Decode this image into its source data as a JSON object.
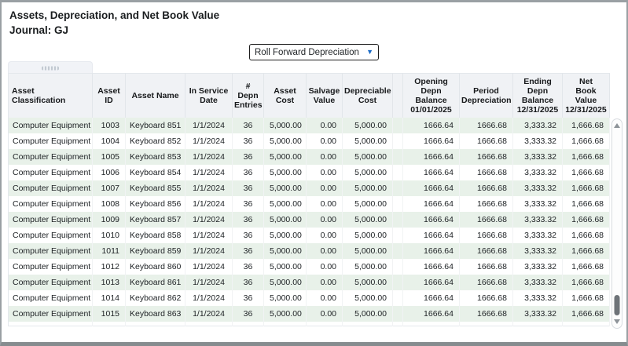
{
  "window": {
    "title": "Assets, Depreciation, and Net Book Value",
    "journal_label": "Journal: GJ"
  },
  "dropdown": {
    "value": "Roll Forward Depreciation",
    "caret_glyph": "▼",
    "caret_color": "#1a6ac6"
  },
  "colors": {
    "header_bg": "#f0f2f5",
    "row_alt_green": "#e8f1e9",
    "window_border": "#9aa0a4"
  },
  "table": {
    "columns": [
      {
        "key": "classification",
        "label": "Asset\nClassification",
        "align": "left",
        "width": 107
      },
      {
        "key": "asset_id",
        "label": "Asset ID",
        "align": "right",
        "width": 42
      },
      {
        "key": "asset_name",
        "label": "Asset Name",
        "align": "left",
        "width": 76
      },
      {
        "key": "in_service_date",
        "label": "In Service\nDate",
        "align": "center",
        "width": 60
      },
      {
        "key": "depn_entries",
        "label": "#\nDepn\nEntries",
        "align": "center",
        "width": 40
      },
      {
        "key": "asset_cost",
        "label": "Asset\nCost",
        "align": "right",
        "width": 54
      },
      {
        "key": "salvage_value",
        "label": "Salvage\nValue",
        "align": "right",
        "width": 46
      },
      {
        "key": "depreciable_cost",
        "label": "Depreciable\nCost",
        "align": "right",
        "width": 64
      },
      {
        "key": "spacer",
        "label": "",
        "align": "right",
        "width": 13
      },
      {
        "key": "opening_depn_balance",
        "label": "Opening\nDepn\nBalance\n01/01/2025",
        "align": "right",
        "width": 72
      },
      {
        "key": "period_depreciation",
        "label": "Period\nDepreciation",
        "align": "right",
        "width": 68
      },
      {
        "key": "ending_depn_balance",
        "label": "Ending\nDepn\nBalance\n12/31/2025",
        "align": "right",
        "width": 63
      },
      {
        "key": "net_book_value",
        "label": "Net\nBook Value\n12/31/2025",
        "align": "right",
        "width": 60
      }
    ],
    "rows": [
      {
        "classification": "Computer Equipment",
        "asset_id": "1003",
        "asset_name": "Keyboard 851",
        "in_service_date": "1/1/2024",
        "depn_entries": "36",
        "asset_cost": "5,000.00",
        "salvage_value": "0.00",
        "depreciable_cost": "5,000.00",
        "spacer": "",
        "opening_depn_balance": "1666.64",
        "period_depreciation": "1666.68",
        "ending_depn_balance": "3,333.32",
        "net_book_value": "1,666.68"
      },
      {
        "classification": "Computer Equipment",
        "asset_id": "1004",
        "asset_name": "Keyboard 852",
        "in_service_date": "1/1/2024",
        "depn_entries": "36",
        "asset_cost": "5,000.00",
        "salvage_value": "0.00",
        "depreciable_cost": "5,000.00",
        "spacer": "",
        "opening_depn_balance": "1666.64",
        "period_depreciation": "1666.68",
        "ending_depn_balance": "3,333.32",
        "net_book_value": "1,666.68"
      },
      {
        "classification": "Computer Equipment",
        "asset_id": "1005",
        "asset_name": "Keyboard 853",
        "in_service_date": "1/1/2024",
        "depn_entries": "36",
        "asset_cost": "5,000.00",
        "salvage_value": "0.00",
        "depreciable_cost": "5,000.00",
        "spacer": "",
        "opening_depn_balance": "1666.64",
        "period_depreciation": "1666.68",
        "ending_depn_balance": "3,333.32",
        "net_book_value": "1,666.68"
      },
      {
        "classification": "Computer Equipment",
        "asset_id": "1006",
        "asset_name": "Keyboard 854",
        "in_service_date": "1/1/2024",
        "depn_entries": "36",
        "asset_cost": "5,000.00",
        "salvage_value": "0.00",
        "depreciable_cost": "5,000.00",
        "spacer": "",
        "opening_depn_balance": "1666.64",
        "period_depreciation": "1666.68",
        "ending_depn_balance": "3,333.32",
        "net_book_value": "1,666.68"
      },
      {
        "classification": "Computer Equipment",
        "asset_id": "1007",
        "asset_name": "Keyboard 855",
        "in_service_date": "1/1/2024",
        "depn_entries": "36",
        "asset_cost": "5,000.00",
        "salvage_value": "0.00",
        "depreciable_cost": "5,000.00",
        "spacer": "",
        "opening_depn_balance": "1666.64",
        "period_depreciation": "1666.68",
        "ending_depn_balance": "3,333.32",
        "net_book_value": "1,666.68"
      },
      {
        "classification": "Computer Equipment",
        "asset_id": "1008",
        "asset_name": "Keyboard 856",
        "in_service_date": "1/1/2024",
        "depn_entries": "36",
        "asset_cost": "5,000.00",
        "salvage_value": "0.00",
        "depreciable_cost": "5,000.00",
        "spacer": "",
        "opening_depn_balance": "1666.64",
        "period_depreciation": "1666.68",
        "ending_depn_balance": "3,333.32",
        "net_book_value": "1,666.68"
      },
      {
        "classification": "Computer Equipment",
        "asset_id": "1009",
        "asset_name": "Keyboard 857",
        "in_service_date": "1/1/2024",
        "depn_entries": "36",
        "asset_cost": "5,000.00",
        "salvage_value": "0.00",
        "depreciable_cost": "5,000.00",
        "spacer": "",
        "opening_depn_balance": "1666.64",
        "period_depreciation": "1666.68",
        "ending_depn_balance": "3,333.32",
        "net_book_value": "1,666.68"
      },
      {
        "classification": "Computer Equipment",
        "asset_id": "1010",
        "asset_name": "Keyboard 858",
        "in_service_date": "1/1/2024",
        "depn_entries": "36",
        "asset_cost": "5,000.00",
        "salvage_value": "0.00",
        "depreciable_cost": "5,000.00",
        "spacer": "",
        "opening_depn_balance": "1666.64",
        "period_depreciation": "1666.68",
        "ending_depn_balance": "3,333.32",
        "net_book_value": "1,666.68"
      },
      {
        "classification": "Computer Equipment",
        "asset_id": "1011",
        "asset_name": "Keyboard 859",
        "in_service_date": "1/1/2024",
        "depn_entries": "36",
        "asset_cost": "5,000.00",
        "salvage_value": "0.00",
        "depreciable_cost": "5,000.00",
        "spacer": "",
        "opening_depn_balance": "1666.64",
        "period_depreciation": "1666.68",
        "ending_depn_balance": "3,333.32",
        "net_book_value": "1,666.68"
      },
      {
        "classification": "Computer Equipment",
        "asset_id": "1012",
        "asset_name": "Keyboard 860",
        "in_service_date": "1/1/2024",
        "depn_entries": "36",
        "asset_cost": "5,000.00",
        "salvage_value": "0.00",
        "depreciable_cost": "5,000.00",
        "spacer": "",
        "opening_depn_balance": "1666.64",
        "period_depreciation": "1666.68",
        "ending_depn_balance": "3,333.32",
        "net_book_value": "1,666.68"
      },
      {
        "classification": "Computer Equipment",
        "asset_id": "1013",
        "asset_name": "Keyboard 861",
        "in_service_date": "1/1/2024",
        "depn_entries": "36",
        "asset_cost": "5,000.00",
        "salvage_value": "0.00",
        "depreciable_cost": "5,000.00",
        "spacer": "",
        "opening_depn_balance": "1666.64",
        "period_depreciation": "1666.68",
        "ending_depn_balance": "3,333.32",
        "net_book_value": "1,666.68"
      },
      {
        "classification": "Computer Equipment",
        "asset_id": "1014",
        "asset_name": "Keyboard 862",
        "in_service_date": "1/1/2024",
        "depn_entries": "36",
        "asset_cost": "5,000.00",
        "salvage_value": "0.00",
        "depreciable_cost": "5,000.00",
        "spacer": "",
        "opening_depn_balance": "1666.64",
        "period_depreciation": "1666.68",
        "ending_depn_balance": "3,333.32",
        "net_book_value": "1,666.68"
      },
      {
        "classification": "Computer Equipment",
        "asset_id": "1015",
        "asset_name": "Keyboard 863",
        "in_service_date": "1/1/2024",
        "depn_entries": "36",
        "asset_cost": "5,000.00",
        "salvage_value": "0.00",
        "depreciable_cost": "5,000.00",
        "spacer": "",
        "opening_depn_balance": "1666.64",
        "period_depreciation": "1666.68",
        "ending_depn_balance": "3,333.32",
        "net_book_value": "1,666.68"
      }
    ]
  }
}
